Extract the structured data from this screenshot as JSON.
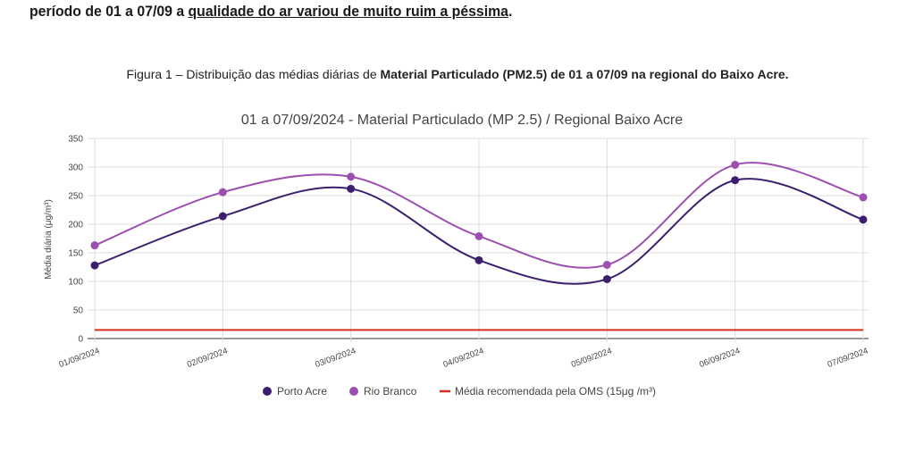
{
  "document": {
    "intro": {
      "prefix": "período de 01 a 07/09 a ",
      "underlined": "qualidade do ar variou de muito ruim a péssima",
      "suffix": "."
    },
    "caption": {
      "prefix": "Figura 1 – Distribuição das médias diárias de ",
      "bold1": "Material Particulado (PM2.5)",
      "middle": " de 01 a 07/09 ",
      "bold2": "na regional do Baixo Acre."
    }
  },
  "chart_data": {
    "type": "line",
    "title": "01 a 07/09/2024 - Material Particulado (MP 2.5) / Regional Baixo Acre",
    "xlabel": "",
    "ylabel": "Média diária (μg/m³)",
    "ylim": [
      0,
      350
    ],
    "yticks": [
      0,
      50,
      100,
      150,
      200,
      250,
      300,
      350
    ],
    "grid": true,
    "smooth": true,
    "legend_position": "bottom",
    "categories": [
      "01/09/2024",
      "02/09/2024",
      "03/09/2024",
      "04/09/2024",
      "05/09/2024",
      "06/09/2024",
      "07/09/2024"
    ],
    "series": [
      {
        "name": "Porto Acre",
        "color": "#3b1f6e",
        "values": [
          128,
          214,
          262,
          137,
          104,
          277,
          208
        ]
      },
      {
        "name": "Rio Branco",
        "color": "#9c4fb0",
        "values": [
          163,
          256,
          283,
          179,
          129,
          304,
          247
        ]
      }
    ],
    "reference_line": {
      "name": "Média recomendada pela OMS (15μg /m³)",
      "value": 15,
      "color": "#d62d20"
    }
  }
}
